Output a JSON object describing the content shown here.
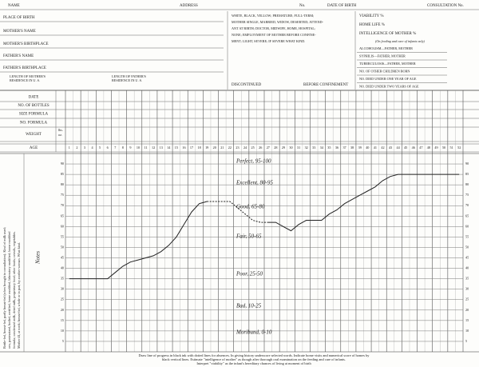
{
  "header": {
    "fields": [
      "NAME",
      "ADDRESS",
      "No.",
      "DATE OF BIRTH",
      "CONSULTATION No."
    ]
  },
  "form": {
    "left_fields": [
      "PLACE OF BIRTH",
      "MOTHER'S NAME",
      "MOTHER'S BIRTHPLACE",
      "FATHER'S NAME",
      "FATHER'S BIRTHPLACE"
    ],
    "residence": [
      [
        "LENGTH OF MOTHER'S",
        "RESIDENCE IN U. S."
      ],
      [
        "LENGTH OF FATHER'S",
        "RESIDENCE IN U. S."
      ]
    ],
    "middle_lines": [
      "WHITE, BLACK, YELLOW; PREMATURE; FULL-TERM;",
      "MOTHER SINGLE, MARRIED, WIDOW, DESERTED; ATTEND-",
      "ANT AT BIRTH; DOCTOR, MIDWIFE, HOME, HOSPITAL;",
      "NONE; EMPLOYMENT OF MOTHER BEFORE CONFINE-",
      "MENT; LIGHT, SEVERE; IF SEVERE WHAT KIND."
    ],
    "discontinued": "DISCONTINUED",
    "before": "BEFORE CONFINEMENT",
    "right_fields": [
      "VIABILITY %",
      "HOME LIFE %",
      "INTELLIGENCE OF MOTHER %"
    ],
    "note": "(On feeding and care of infants only)",
    "right_rows": [
      "ALCOHOLISM—FATHER, MOTHER",
      "SYPHILIS—FATHER, MOTHER",
      "TUBERCULOSIS—FATHER, MOTHER",
      "NO. OF OTHER CHILDREN BORN",
      "NO. DIED UNDER ONE YEAR OF AGE",
      "NO. DIED UNDER TWO YEARS OF AGE"
    ]
  },
  "table": {
    "rows": [
      "DATE",
      "NO. OF BOTTLES",
      "SIZE FORMULA",
      "NO. FORMULA",
      "WEIGHT",
      "AGE"
    ],
    "weight_units": [
      "lbs.",
      "oz."
    ]
  },
  "chart_data": {
    "type": "line",
    "notes_label": "Notes",
    "side_text": [
      "Bottle-fed, breast-fed, partly breast-fed (when brought to consultation). Kind of milk used;",
      "raw, pasteurized, boiled, certified, home modified, laboratory modified; home modified",
      "formula; condensed milk, dried milk, proprietary food; other foods; cereals, vegetables.",
      "Mother ill, at work; breast-fed, whole or in part, by another woman. What kind."
    ],
    "zones": [
      "Perfect, 95-100",
      "Excellent, 80-95",
      "Good, 65-80",
      "Fair, 50-65",
      "Poor, 25-50",
      "Bad, 10-25",
      "Moribund, 0-10"
    ],
    "x": [
      1,
      2,
      3,
      4,
      5,
      6,
      7,
      8,
      9,
      10,
      11,
      12,
      13,
      14,
      15,
      16,
      17,
      18,
      19,
      20,
      21,
      22,
      23,
      24,
      25,
      26,
      27,
      28,
      29,
      30,
      31,
      32,
      33,
      34,
      35,
      36,
      37,
      38,
      39,
      40,
      41,
      42,
      43,
      44,
      45,
      46,
      47,
      48,
      49,
      50,
      51,
      52
    ],
    "xlim": [
      0.5,
      52.5
    ],
    "ylim": [
      0,
      95
    ],
    "yticks": [
      5,
      10,
      15,
      20,
      25,
      30,
      35,
      40,
      45,
      50,
      55,
      60,
      65,
      70,
      75,
      80,
      85,
      90
    ],
    "grid": true,
    "series": [
      {
        "color": "#222",
        "dashed": false,
        "values": [
          35,
          35,
          35,
          35,
          35,
          35,
          38,
          41,
          43,
          44,
          45,
          46,
          48,
          51,
          55,
          61,
          67,
          71,
          72,
          null,
          null,
          null,
          null,
          null,
          null,
          null,
          62,
          62,
          60,
          58,
          61,
          63,
          63,
          63,
          66,
          68,
          71,
          73,
          75,
          77,
          79,
          82,
          84,
          85,
          85,
          85,
          85,
          85,
          85,
          85,
          85,
          85
        ]
      },
      {
        "color": "#222",
        "dashed": true,
        "values": [
          null,
          null,
          null,
          null,
          null,
          null,
          null,
          null,
          null,
          null,
          null,
          null,
          null,
          null,
          null,
          null,
          null,
          null,
          72,
          72,
          72,
          72,
          69,
          66,
          63,
          62,
          62,
          null,
          null,
          null,
          null,
          null,
          null,
          null,
          null,
          null,
          null,
          null,
          null,
          null,
          null,
          null,
          null,
          null,
          null,
          null,
          null,
          null,
          null,
          null,
          null,
          null
        ]
      }
    ]
  },
  "footer": {
    "lines": [
      "Draw line of progress in black ink with dotted lines for absences.  In giving history underscore selected words.  Indicate home visits and numerical score of homes by",
      "black vertical lines.  Estimate \"intelligence of mother\" as though after thorough oral examination on the feeding and care of infants.",
      "Interpret \"viability\" as the infant's hereditary chances of living at moment of birth"
    ]
  }
}
